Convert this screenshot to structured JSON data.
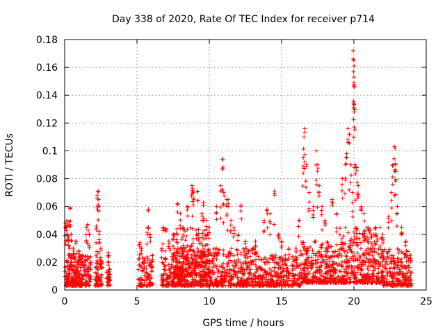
{
  "chart_data": {
    "type": "scatter",
    "title": "Day 338 of 2020, Rate Of TEC Index for receiver p714",
    "xlabel": "GPS time / hours",
    "ylabel": "ROTI / TECUs",
    "xlim": [
      0,
      25
    ],
    "ylim": [
      0,
      0.18
    ],
    "x_ticks": [
      0,
      5,
      10,
      15,
      20,
      25
    ],
    "x_tick_labels": [
      "0",
      "5",
      "10",
      "15",
      "20",
      "25"
    ],
    "y_ticks": [
      0,
      0.02,
      0.04,
      0.06,
      0.08,
      0.1,
      0.12,
      0.14,
      0.16,
      0.18
    ],
    "y_tick_labels": [
      "0",
      "0.02",
      "0.04",
      "0.06",
      "0.08",
      "0.1",
      "0.12",
      "0.14",
      "0.16",
      "0.18"
    ],
    "grid": true,
    "marker": "+",
    "color": "#ff0000",
    "series": [
      {
        "name": "ROTI",
        "points": [
          [
            0.05,
            0.048
          ],
          [
            0.1,
            0.045
          ],
          [
            0.15,
            0.05
          ],
          [
            0.2,
            0.04
          ],
          [
            0.25,
            0.035
          ],
          [
            0.3,
            0.049
          ],
          [
            0.35,
            0.03
          ],
          [
            0.4,
            0.059
          ],
          [
            0.45,
            0.04
          ],
          [
            0.5,
            0.025
          ],
          [
            0.6,
            0.03
          ],
          [
            0.8,
            0.035
          ],
          [
            1.0,
            0.028
          ],
          [
            1.2,
            0.025
          ],
          [
            1.5,
            0.045
          ],
          [
            1.6,
            0.047
          ],
          [
            1.7,
            0.04
          ],
          [
            1.8,
            0.02
          ],
          [
            2.2,
            0.046
          ],
          [
            2.25,
            0.068
          ],
          [
            2.3,
            0.071
          ],
          [
            2.35,
            0.065
          ],
          [
            2.4,
            0.04
          ],
          [
            2.5,
            0.03
          ],
          [
            2.6,
            0.02
          ],
          [
            3.0,
            0.027
          ],
          [
            3.05,
            0.025
          ],
          [
            3.1,
            0.015
          ],
          [
            5.2,
            0.034
          ],
          [
            5.3,
            0.03
          ],
          [
            5.5,
            0.02
          ],
          [
            5.7,
            0.045
          ],
          [
            5.8,
            0.058
          ],
          [
            5.9,
            0.04
          ],
          [
            6.0,
            0.02
          ],
          [
            6.8,
            0.045
          ],
          [
            7.0,
            0.044
          ],
          [
            7.2,
            0.035
          ],
          [
            7.5,
            0.04
          ],
          [
            7.8,
            0.062
          ],
          [
            8.0,
            0.055
          ],
          [
            8.2,
            0.045
          ],
          [
            8.5,
            0.06
          ],
          [
            8.8,
            0.075
          ],
          [
            8.85,
            0.073
          ],
          [
            8.9,
            0.07
          ],
          [
            9.2,
            0.071
          ],
          [
            9.5,
            0.055
          ],
          [
            9.6,
            0.063
          ],
          [
            9.8,
            0.05
          ],
          [
            10.0,
            0.045
          ],
          [
            10.5,
            0.06
          ],
          [
            10.8,
            0.075
          ],
          [
            10.9,
            0.094
          ],
          [
            10.95,
            0.094
          ],
          [
            11.0,
            0.07
          ],
          [
            11.2,
            0.065
          ],
          [
            11.3,
            0.065
          ],
          [
            11.5,
            0.05
          ],
          [
            11.7,
            0.045
          ],
          [
            12.0,
            0.04
          ],
          [
            12.2,
            0.061
          ],
          [
            12.5,
            0.035
          ],
          [
            13.0,
            0.03
          ],
          [
            13.2,
            0.035
          ],
          [
            13.8,
            0.05
          ],
          [
            14.0,
            0.058
          ],
          [
            14.2,
            0.055
          ],
          [
            14.5,
            0.071
          ],
          [
            14.8,
            0.04
          ],
          [
            15.0,
            0.035
          ],
          [
            15.5,
            0.03
          ],
          [
            16.0,
            0.03
          ],
          [
            16.2,
            0.05
          ],
          [
            16.5,
            0.095
          ],
          [
            16.55,
            0.11
          ],
          [
            16.6,
            0.116
          ],
          [
            16.7,
            0.09
          ],
          [
            16.9,
            0.07
          ],
          [
            17.2,
            0.06
          ],
          [
            17.4,
            0.1
          ],
          [
            17.5,
            0.09
          ],
          [
            17.6,
            0.075
          ],
          [
            17.8,
            0.06
          ],
          [
            18.0,
            0.05
          ],
          [
            18.5,
            0.065
          ],
          [
            18.8,
            0.055
          ],
          [
            19.2,
            0.08
          ],
          [
            19.4,
            0.09
          ],
          [
            19.5,
            0.098
          ],
          [
            19.6,
            0.116
          ],
          [
            19.7,
            0.112
          ],
          [
            19.8,
            0.09
          ],
          [
            19.9,
            0.07
          ],
          [
            19.95,
            0.172
          ],
          [
            20.0,
            0.165
          ],
          [
            20.0,
            0.153
          ],
          [
            20.0,
            0.149
          ],
          [
            20.0,
            0.134
          ],
          [
            20.05,
            0.13
          ],
          [
            20.1,
            0.09
          ],
          [
            20.2,
            0.088
          ],
          [
            20.3,
            0.075
          ],
          [
            20.5,
            0.06
          ],
          [
            20.7,
            0.055
          ],
          [
            21.0,
            0.045
          ],
          [
            21.5,
            0.045
          ],
          [
            22.0,
            0.04
          ],
          [
            22.4,
            0.053
          ],
          [
            22.6,
            0.07
          ],
          [
            22.7,
            0.09
          ],
          [
            22.8,
            0.103
          ],
          [
            22.85,
            0.102
          ],
          [
            22.9,
            0.085
          ],
          [
            23.0,
            0.06
          ],
          [
            23.3,
            0.045
          ],
          [
            23.6,
            0.035
          ],
          [
            23.9,
            0.025
          ]
        ],
        "clusters": [
          {
            "x_range": [
              0.0,
              1.8
            ],
            "y_range": [
              0.003,
              0.025
            ],
            "count": 260
          },
          {
            "x_range": [
              2.1,
              2.6
            ],
            "y_range": [
              0.003,
              0.03
            ],
            "count": 70
          },
          {
            "x_range": [
              2.9,
              3.15
            ],
            "y_range": [
              0.003,
              0.015
            ],
            "count": 25
          },
          {
            "x_range": [
              5.1,
              6.1
            ],
            "y_range": [
              0.003,
              0.025
            ],
            "count": 90
          },
          {
            "x_range": [
              6.7,
              10.3
            ],
            "y_range": [
              0.003,
              0.03
            ],
            "count": 420
          },
          {
            "x_range": [
              7.5,
              10.0
            ],
            "y_range": [
              0.01,
              0.045
            ],
            "count": 180
          },
          {
            "x_range": [
              10.3,
              13.3
            ],
            "y_range": [
              0.003,
              0.03
            ],
            "count": 320
          },
          {
            "x_range": [
              13.3,
              16.3
            ],
            "y_range": [
              0.003,
              0.025
            ],
            "count": 300
          },
          {
            "x_range": [
              16.3,
              19.0
            ],
            "y_range": [
              0.005,
              0.035
            ],
            "count": 320
          },
          {
            "x_range": [
              19.0,
              22.0
            ],
            "y_range": [
              0.005,
              0.045
            ],
            "count": 380
          },
          {
            "x_range": [
              22.0,
              24.0
            ],
            "y_range": [
              0.003,
              0.03
            ],
            "count": 220
          }
        ]
      }
    ]
  }
}
